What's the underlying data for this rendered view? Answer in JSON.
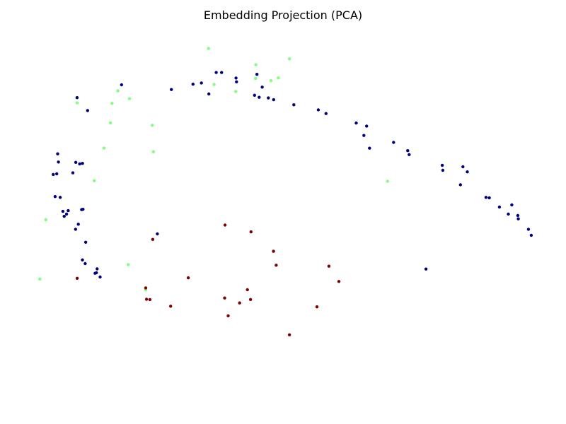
{
  "chart_data": {
    "type": "scatter",
    "title": "Embedding Projection (PCA)",
    "xlabel": "",
    "ylabel": "",
    "axes_visible": false,
    "grid": false,
    "legend": "none",
    "xlim": [
      0,
      100
    ],
    "ylim": [
      0,
      100
    ],
    "series": [
      {
        "color": "#00007f",
        "marker": "circle",
        "points": [
          [
            28.08,
            83.94
          ],
          [
            32.33,
            85.35
          ],
          [
            33.98,
            85.66
          ],
          [
            36.89,
            88.41
          ],
          [
            37.94,
            88.41
          ],
          [
            40.78,
            86.97
          ],
          [
            40.88,
            85.97
          ],
          [
            44.89,
            87.93
          ],
          [
            45.92,
            84.58
          ],
          [
            44.41,
            82.45
          ],
          [
            35.45,
            82.78
          ],
          [
            45.32,
            81.91
          ],
          [
            47.12,
            81.75
          ],
          [
            48.17,
            81.28
          ],
          [
            52.13,
            79.95
          ],
          [
            56.93,
            78.61
          ],
          [
            58.44,
            77.65
          ],
          [
            64.37,
            75.16
          ],
          [
            66.42,
            74.36
          ],
          [
            65.87,
            71.91
          ],
          [
            66.98,
            68.58
          ],
          [
            71.71,
            70.09
          ],
          [
            74.49,
            67.92
          ],
          [
            74.76,
            66.88
          ],
          [
            81.26,
            64.09
          ],
          [
            81.38,
            62.77
          ],
          [
            85.32,
            63.71
          ],
          [
            86.18,
            62.37
          ],
          [
            84.84,
            58.98
          ],
          [
            89.85,
            55.68
          ],
          [
            90.5,
            55.57
          ],
          [
            92.48,
            53.14
          ],
          [
            94.91,
            53.72
          ],
          [
            94.24,
            51.31
          ],
          [
            96.1,
            50.92
          ],
          [
            96.19,
            50.05
          ],
          [
            98.18,
            47.31
          ],
          [
            98.73,
            45.74
          ],
          [
            78.07,
            36.91
          ],
          [
            25.34,
            46.11
          ],
          [
            18.3,
            85.18
          ],
          [
            9.57,
            81.82
          ],
          [
            11.64,
            78.45
          ],
          [
            5.76,
            67.1
          ],
          [
            5.92,
            64.94
          ],
          [
            9.32,
            64.85
          ],
          [
            10.08,
            64.47
          ],
          [
            10.64,
            64.6
          ],
          [
            4.9,
            61.68
          ],
          [
            5.58,
            61.86
          ],
          [
            8.75,
            62.12
          ],
          [
            5.27,
            55.88
          ],
          [
            6.26,
            55.69
          ],
          [
            6.79,
            52.01
          ],
          [
            7.84,
            52.21
          ],
          [
            7.52,
            51.32
          ],
          [
            10.47,
            52.48
          ],
          [
            10.73,
            52.56
          ],
          [
            7.04,
            50.72
          ],
          [
            9.28,
            47.34
          ],
          [
            9.82,
            48.64
          ],
          [
            11.26,
            43.92
          ],
          [
            10.63,
            39.29
          ],
          [
            11.17,
            38.34
          ],
          [
            13.51,
            36.94
          ],
          [
            13.11,
            35.79
          ],
          [
            13.38,
            35.92
          ],
          [
            14.1,
            34.82
          ]
        ]
      },
      {
        "color": "#80ff80",
        "marker": "circle",
        "points": [
          [
            35.37,
            94.7
          ],
          [
            51.27,
            91.99
          ],
          [
            44.66,
            90.44
          ],
          [
            44.6,
            86.84
          ],
          [
            47.64,
            86.26
          ],
          [
            49.09,
            86.99
          ],
          [
            36.47,
            85.25
          ],
          [
            40.74,
            83.44
          ],
          [
            17.58,
            83.63
          ],
          [
            19.86,
            81.53
          ],
          [
            16.44,
            80.34
          ],
          [
            16.14,
            75.23
          ],
          [
            24.33,
            74.58
          ],
          [
            9.58,
            80.44
          ],
          [
            14.88,
            68.59
          ],
          [
            24.56,
            67.65
          ],
          [
            12.96,
            60.06
          ],
          [
            70.53,
            59.91
          ],
          [
            3.45,
            49.82
          ],
          [
            19.63,
            38.08
          ],
          [
            2.28,
            34.29
          ],
          [
            23.05,
            31.49
          ]
        ]
      },
      {
        "color": "#7f0000",
        "marker": "circle",
        "points": [
          [
            38.63,
            48.42
          ],
          [
            43.72,
            46.64
          ],
          [
            24.43,
            44.66
          ],
          [
            48.14,
            41.56
          ],
          [
            48.67,
            37.9
          ],
          [
            59.02,
            37.64
          ],
          [
            31.4,
            34.59
          ],
          [
            9.6,
            34.48
          ],
          [
            60.97,
            33.64
          ],
          [
            23.05,
            31.97
          ],
          [
            43.02,
            31.49
          ],
          [
            38.54,
            29.32
          ],
          [
            23.21,
            28.98
          ],
          [
            23.88,
            28.91
          ],
          [
            43.62,
            28.92
          ],
          [
            41.48,
            28.02
          ],
          [
            27.94,
            27.17
          ],
          [
            56.67,
            27.0
          ],
          [
            39.24,
            24.65
          ],
          [
            51.26,
            19.67
          ]
        ]
      }
    ]
  }
}
